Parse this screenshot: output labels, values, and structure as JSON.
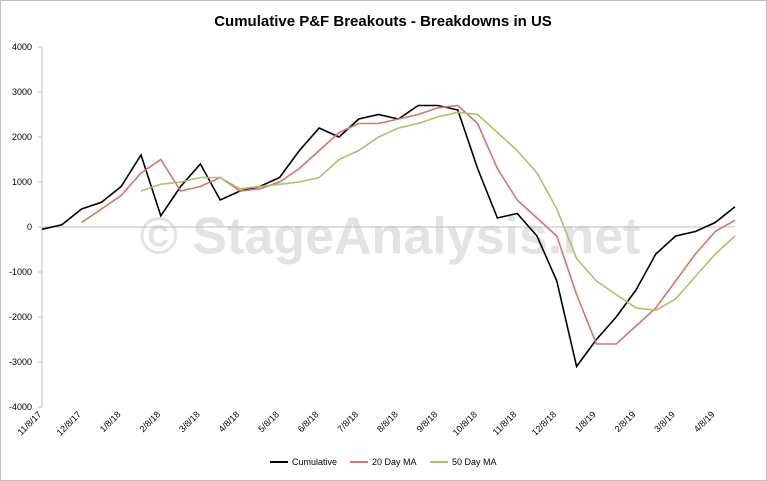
{
  "chart_data": {
    "type": "line",
    "title": "Cumulative P&F Breakouts - Breakdowns in US",
    "watermark": "© StageAnalysis.net",
    "categories": [
      "11/8/17",
      null,
      "12/8/17",
      null,
      "1/8/18",
      null,
      "2/8/18",
      null,
      "3/8/18",
      null,
      "4/8/18",
      null,
      "5/8/18",
      null,
      "6/8/18",
      null,
      "7/8/18",
      null,
      "8/8/18",
      null,
      "9/8/18",
      null,
      "10/8/18",
      null,
      "11/8/18",
      null,
      "12/8/18",
      null,
      "1/8/19",
      null,
      "2/8/19",
      null,
      "3/8/19",
      null,
      "4/8/19",
      null
    ],
    "series": [
      {
        "name": "Cumulative",
        "color": "#000000",
        "values": [
          -50,
          50,
          400,
          550,
          900,
          1600,
          250,
          900,
          1400,
          600,
          800,
          900,
          1100,
          1700,
          2200,
          2000,
          2400,
          2500,
          2400,
          2700,
          2700,
          2600,
          1300,
          200,
          300,
          -200,
          -1200,
          -3100,
          -2500,
          -2000,
          -1400,
          -600,
          -200,
          -100,
          100,
          450
        ]
      },
      {
        "name": "20 Day MA",
        "color": "#d9736e",
        "values": [
          null,
          null,
          100,
          400,
          700,
          1200,
          1500,
          800,
          900,
          1100,
          800,
          850,
          1000,
          1300,
          1700,
          2100,
          2300,
          2300,
          2400,
          2500,
          2650,
          2700,
          2300,
          1300,
          600,
          200,
          -200,
          -1500,
          -2600,
          -2600,
          -2200,
          -1800,
          -1200,
          -600,
          -100,
          150
        ]
      },
      {
        "name": "50 Day MA",
        "color": "#a9c468",
        "values": [
          null,
          null,
          null,
          null,
          null,
          800,
          950,
          1000,
          1100,
          1100,
          850,
          900,
          950,
          1000,
          1100,
          1500,
          1700,
          2000,
          2200,
          2300,
          2450,
          2550,
          2500,
          2100,
          1700,
          1200,
          400,
          -700,
          -1200,
          -1500,
          -1800,
          -1850,
          -1600,
          -1100,
          -600,
          -200
        ]
      }
    ],
    "ylim": [
      -4000,
      4000
    ],
    "yticks": [
      -4000,
      -3000,
      -2000,
      -1000,
      0,
      1000,
      2000,
      3000,
      4000
    ]
  }
}
